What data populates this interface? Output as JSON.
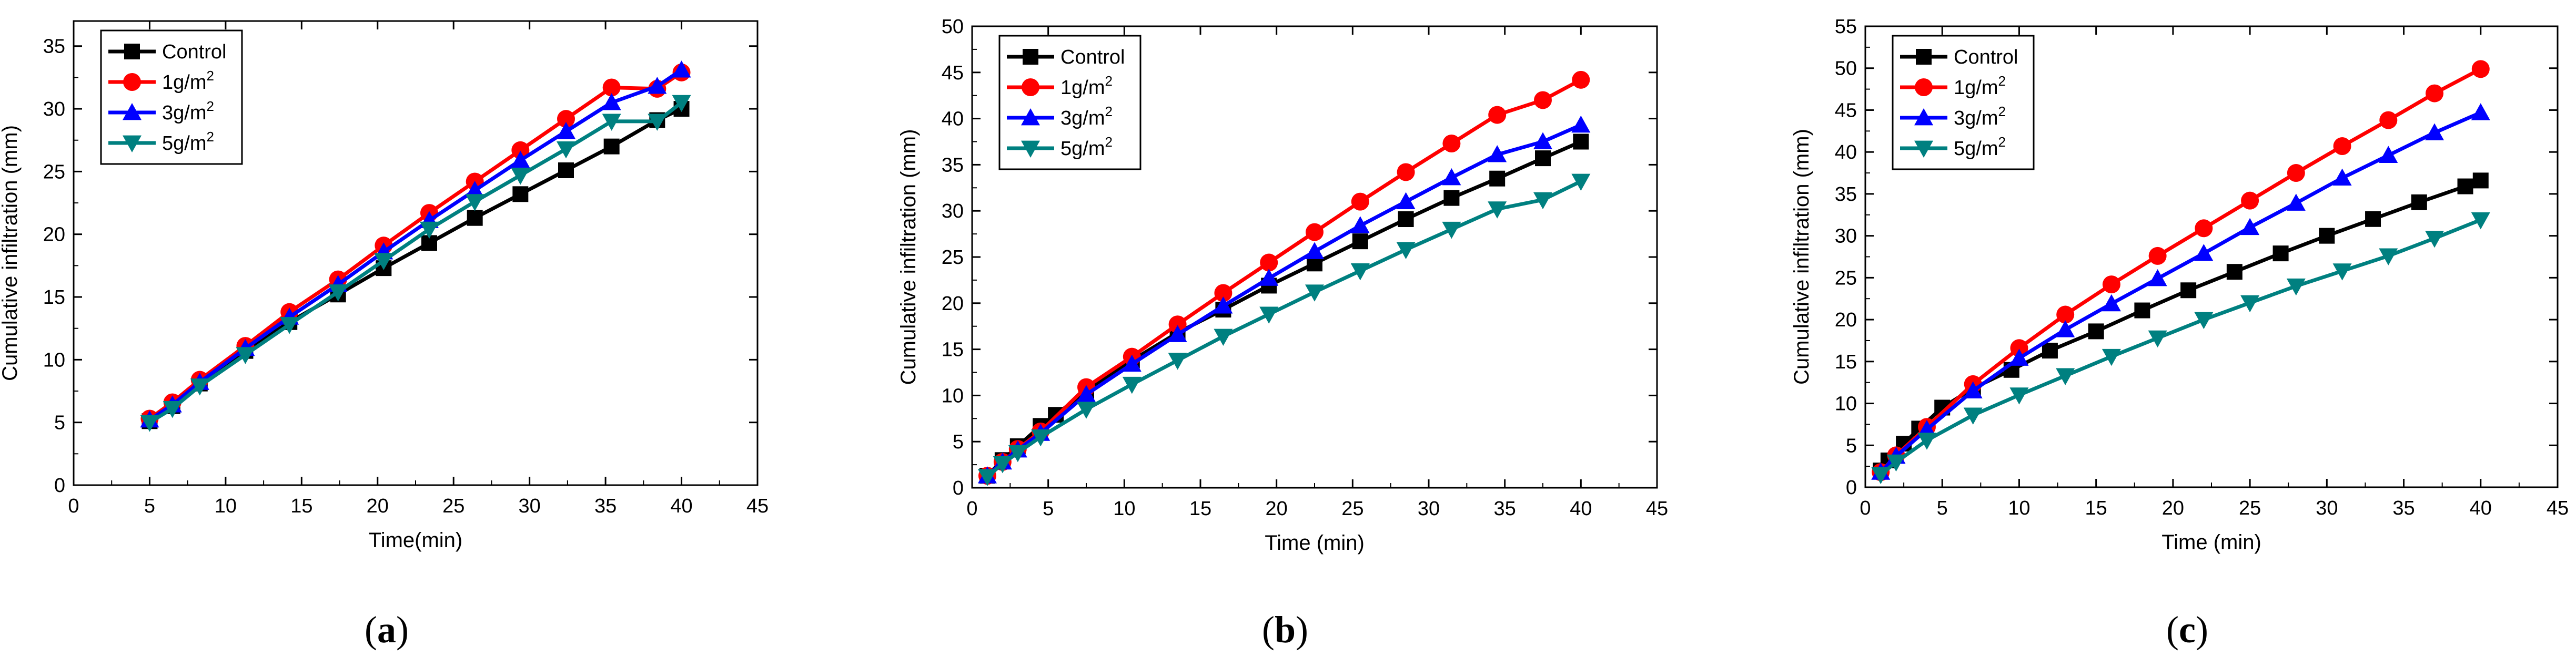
{
  "figure": {
    "panels": [
      {
        "id": "a",
        "label_text": "a",
        "label_open": "(",
        "label_close": ")"
      },
      {
        "id": "b",
        "label_text": "b",
        "label_open": "(",
        "label_close": ")"
      },
      {
        "id": "c",
        "label_text": "c",
        "label_open": "(",
        "label_close": ")"
      }
    ]
  },
  "colors": {
    "control": "#000000",
    "g1": "#ff0000",
    "g3": "#0000ff",
    "g5": "#008080"
  },
  "chart_data": [
    {
      "type": "line",
      "title": "",
      "xlabel": "Time(min)",
      "ylabel": "Cumulative infiltration (mm)",
      "xlim": [
        0,
        45
      ],
      "ylim": [
        0,
        37
      ],
      "xticks": [
        0,
        5,
        10,
        15,
        20,
        25,
        30,
        35,
        40,
        45
      ],
      "yticks": [
        0,
        5,
        10,
        15,
        20,
        25,
        30,
        35
      ],
      "legend_position": "top-left",
      "series": [
        {
          "name": "Control",
          "legend_base": "Control",
          "legend_sup": "",
          "marker": "square",
          "color": "#000000",
          "x": [
            5,
            6.5,
            8.3,
            11.3,
            14.2,
            17.4,
            20.4,
            23.4,
            26.4,
            29.4,
            32.4,
            35.4,
            38.4,
            40
          ],
          "y": [
            5.1,
            6.3,
            8.1,
            10.7,
            13.0,
            15.2,
            17.3,
            19.3,
            21.3,
            23.2,
            25.1,
            27.0,
            29.1,
            30.0
          ]
        },
        {
          "name": "1g/m2",
          "legend_base": "1g/m",
          "legend_sup": "2",
          "marker": "circle",
          "color": "#ff0000",
          "x": [
            5,
            6.5,
            8.3,
            11.3,
            14.2,
            17.4,
            20.4,
            23.4,
            26.4,
            29.4,
            32.4,
            35.4,
            38.4,
            40
          ],
          "y": [
            5.3,
            6.6,
            8.4,
            11.1,
            13.8,
            16.4,
            19.1,
            21.7,
            24.2,
            26.7,
            29.2,
            31.7,
            31.6,
            32.9
          ]
        },
        {
          "name": "3g/m2",
          "legend_base": "3g/m",
          "legend_sup": "2",
          "marker": "triangle-up",
          "color": "#0000ff",
          "x": [
            5,
            6.5,
            8.3,
            11.3,
            14.2,
            17.4,
            20.4,
            23.4,
            26.4,
            29.4,
            32.4,
            35.4,
            38.4,
            40
          ],
          "y": [
            5.2,
            6.4,
            8.2,
            10.9,
            13.4,
            16.0,
            18.6,
            21.1,
            23.5,
            25.9,
            28.2,
            30.5,
            31.8,
            33.1
          ]
        },
        {
          "name": "5g/m2",
          "legend_base": "5g/m",
          "legend_sup": "2",
          "marker": "triangle-down",
          "color": "#008080",
          "x": [
            5,
            6.5,
            8.3,
            11.3,
            14.2,
            17.4,
            20.4,
            23.4,
            26.4,
            29.4,
            32.4,
            35.4,
            38.4,
            40
          ],
          "y": [
            5.0,
            6.1,
            7.9,
            10.4,
            12.8,
            15.4,
            17.9,
            20.4,
            22.6,
            24.7,
            26.8,
            29.0,
            29.0,
            30.5
          ]
        }
      ]
    },
    {
      "type": "line",
      "title": "",
      "xlabel": "Time (min)",
      "ylabel": "Cumulative infiltration (mm)",
      "xlim": [
        0,
        45
      ],
      "ylim": [
        0,
        50
      ],
      "xticks": [
        0,
        5,
        10,
        15,
        20,
        25,
        30,
        35,
        40,
        45
      ],
      "yticks": [
        0,
        5,
        10,
        15,
        20,
        25,
        30,
        35,
        40,
        45,
        50
      ],
      "legend_position": "top-left",
      "series": [
        {
          "name": "Control",
          "legend_base": "Control",
          "legend_sup": "",
          "marker": "square",
          "color": "#000000",
          "x": [
            1,
            2,
            3,
            4.5,
            5.5,
            7.5,
            10.5,
            13.5,
            16.5,
            19.5,
            22.5,
            25.5,
            28.5,
            31.5,
            34.5,
            37.5,
            40
          ],
          "y": [
            1.3,
            3.0,
            4.5,
            6.7,
            7.9,
            10.5,
            13.8,
            16.8,
            19.3,
            21.9,
            24.3,
            26.7,
            29.1,
            31.4,
            33.5,
            35.7,
            37.5
          ]
        },
        {
          "name": "1g/m2",
          "legend_base": "1g/m",
          "legend_sup": "2",
          "marker": "circle",
          "color": "#ff0000",
          "x": [
            1,
            2,
            3,
            4.5,
            7.5,
            10.5,
            13.5,
            16.5,
            19.5,
            22.5,
            25.5,
            28.5,
            31.5,
            34.5,
            37.5,
            40
          ],
          "y": [
            1.3,
            2.8,
            4.2,
            6.1,
            10.9,
            14.2,
            17.7,
            21.1,
            24.4,
            27.7,
            31.0,
            34.2,
            37.3,
            40.4,
            42.0,
            44.2
          ]
        },
        {
          "name": "3g/m2",
          "legend_base": "3g/m",
          "legend_sup": "2",
          "marker": "triangle-up",
          "color": "#0000ff",
          "x": [
            1,
            2,
            3,
            4.5,
            7.5,
            10.5,
            13.5,
            16.5,
            19.5,
            22.5,
            25.5,
            28.5,
            31.5,
            34.5,
            37.5,
            40
          ],
          "y": [
            1.3,
            2.8,
            4.1,
            5.9,
            10.1,
            13.4,
            16.6,
            19.7,
            22.7,
            25.6,
            28.4,
            31.0,
            33.6,
            36.1,
            37.5,
            39.3
          ]
        },
        {
          "name": "5g/m2",
          "legend_base": "5g/m",
          "legend_sup": "2",
          "marker": "triangle-down",
          "color": "#008080",
          "x": [
            1,
            2,
            3,
            4.5,
            7.5,
            10.5,
            13.5,
            16.5,
            19.5,
            22.5,
            25.5,
            28.5,
            31.5,
            34.5,
            37.5,
            40
          ],
          "y": [
            1.2,
            2.6,
            3.8,
            5.5,
            8.5,
            11.2,
            13.8,
            16.4,
            18.8,
            21.2,
            23.5,
            25.8,
            28.0,
            30.2,
            31.2,
            33.2
          ]
        }
      ]
    },
    {
      "type": "line",
      "title": "",
      "xlabel": "Time (min)",
      "ylabel": "Cumulative infiltration (mm)",
      "xlim": [
        0,
        45
      ],
      "ylim": [
        0,
        55
      ],
      "xticks": [
        0,
        5,
        10,
        15,
        20,
        25,
        30,
        35,
        40,
        45
      ],
      "yticks": [
        0,
        5,
        10,
        15,
        20,
        25,
        30,
        35,
        40,
        45,
        50,
        55
      ],
      "legend_position": "top-left",
      "series": [
        {
          "name": "Control",
          "legend_base": "Control",
          "legend_sup": "",
          "marker": "square",
          "color": "#000000",
          "x": [
            1,
            1.5,
            2.5,
            3.5,
            5,
            7,
            9.5,
            12,
            15,
            18,
            21,
            24,
            27,
            30,
            33,
            36,
            39,
            40
          ],
          "y": [
            2.0,
            3.2,
            5.2,
            7.0,
            9.5,
            11.8,
            14.0,
            16.3,
            18.6,
            21.1,
            23.5,
            25.7,
            27.9,
            30.0,
            32.0,
            34.0,
            35.9,
            36.6
          ]
        },
        {
          "name": "1g/m2",
          "legend_base": "1g/m",
          "legend_sup": "2",
          "marker": "circle",
          "color": "#ff0000",
          "x": [
            1,
            2,
            4,
            7,
            10,
            13,
            16,
            19,
            22,
            25,
            28,
            31,
            34,
            37,
            40
          ],
          "y": [
            1.8,
            3.8,
            7.2,
            12.3,
            16.6,
            20.6,
            24.2,
            27.6,
            30.9,
            34.2,
            37.5,
            40.7,
            43.8,
            47.0,
            49.9
          ]
        },
        {
          "name": "3g/m2",
          "legend_base": "3g/m",
          "legend_sup": "2",
          "marker": "triangle-up",
          "color": "#0000ff",
          "x": [
            1,
            2,
            4,
            7,
            10,
            13,
            16,
            19,
            22,
            25,
            28,
            31,
            34,
            37,
            40
          ],
          "y": [
            1.8,
            3.7,
            6.9,
            11.5,
            15.4,
            18.8,
            21.9,
            24.9,
            27.9,
            31.0,
            33.9,
            36.9,
            39.6,
            42.3,
            44.7
          ]
        },
        {
          "name": "5g/m2",
          "legend_base": "5g/m",
          "legend_sup": "2",
          "marker": "triangle-down",
          "color": "#008080",
          "x": [
            1,
            2,
            4,
            7,
            10,
            13,
            16,
            19,
            22,
            25,
            28,
            31,
            34,
            37,
            40
          ],
          "y": [
            1.5,
            3.0,
            5.6,
            8.6,
            11.0,
            13.3,
            15.6,
            17.8,
            20.0,
            22.0,
            24.0,
            25.8,
            27.6,
            29.7,
            31.9
          ]
        }
      ]
    }
  ]
}
